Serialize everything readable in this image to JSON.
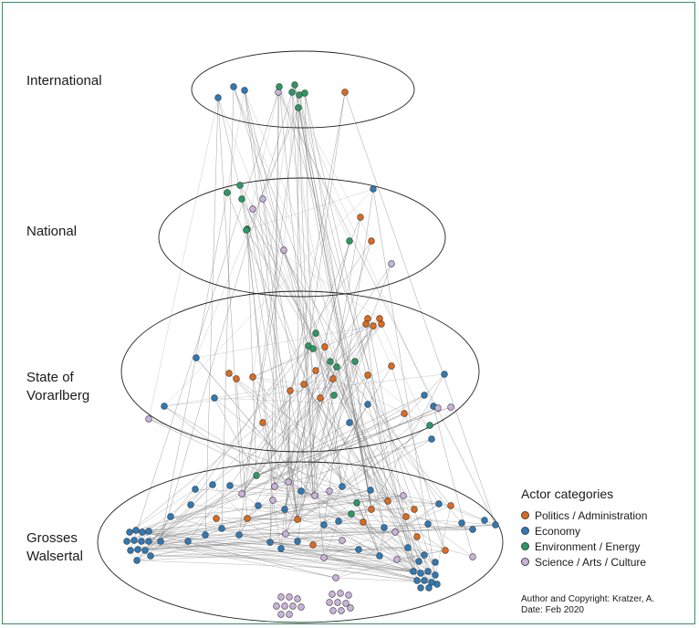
{
  "levels": [
    {
      "id": "international",
      "label": "International"
    },
    {
      "id": "national",
      "label": "National"
    },
    {
      "id": "state",
      "label_line1": "State of",
      "label_line2": "Vorarlberg"
    },
    {
      "id": "local",
      "label_line1": "Grosses",
      "label_line2": "Walsertal"
    }
  ],
  "legend": {
    "title": "Actor categories",
    "items": [
      {
        "key": "politics",
        "label": "Politics / Administration",
        "color": "#e06a1b"
      },
      {
        "key": "economy",
        "label": "Economy",
        "color": "#2e7ab8"
      },
      {
        "key": "environment",
        "label": "Environment / Energy",
        "color": "#2a9a63"
      },
      {
        "key": "science",
        "label": "Science / Arts / Culture",
        "color": "#c9b3db"
      }
    ]
  },
  "credit": {
    "line1": "Author and Copyright: Kratzer, A.",
    "line2": "Date: Feb 2020"
  }
}
